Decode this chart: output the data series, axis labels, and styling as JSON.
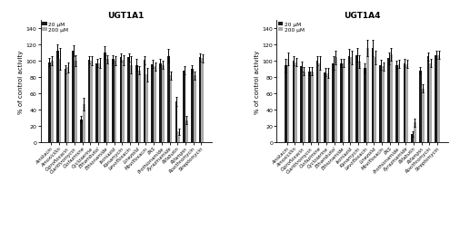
{
  "title1": "UGT1A1",
  "title2": "UGT1A4",
  "ylabel": "% of control activity",
  "legend_labels": [
    "20 μM",
    "200 μM"
  ],
  "categories": [
    "Amikacin",
    "Amoxicillin",
    "Ciprofloxacin",
    "Clarithromycin",
    "Clofazimine",
    "Cycloserine",
    "Ethambutol",
    "Ethionamide",
    "Isoniazid",
    "Kanamycin",
    "Levofloxacin",
    "Linezolid",
    "Moxifloxacin",
    "PAS",
    "Prothionamide",
    "Pyrazinamide",
    "Rifabutin",
    "Rifampin",
    "Roxithromycin",
    "Streptomycin"
  ],
  "ugt1a1_20": [
    98,
    112,
    90,
    112,
    28,
    101,
    97,
    110,
    102,
    104,
    104,
    95,
    101,
    96,
    97,
    106,
    50,
    88,
    90,
    104
  ],
  "ugt1a1_200": [
    100,
    102,
    92,
    100,
    47,
    100,
    97,
    102,
    100,
    101,
    95,
    88,
    83,
    93,
    95,
    82,
    13,
    27,
    82,
    103
  ],
  "ugt1a1_20_err": [
    5,
    8,
    5,
    7,
    4,
    4,
    5,
    8,
    5,
    5,
    5,
    7,
    5,
    5,
    5,
    8,
    6,
    5,
    5,
    5
  ],
  "ugt1a1_200_err": [
    6,
    13,
    6,
    7,
    8,
    5,
    6,
    5,
    5,
    6,
    10,
    5,
    8,
    5,
    5,
    5,
    4,
    5,
    5,
    5
  ],
  "ugt1a4_20": [
    94,
    100,
    93,
    87,
    100,
    86,
    97,
    97,
    106,
    107,
    91,
    115,
    95,
    103,
    95,
    97,
    10,
    88,
    105,
    107
  ],
  "ugt1a4_200": [
    102,
    98,
    87,
    87,
    97,
    85,
    104,
    97,
    104,
    99,
    115,
    104,
    93,
    108,
    96,
    96,
    24,
    66,
    97,
    107
  ],
  "ugt1a4_20_err": [
    8,
    5,
    6,
    5,
    5,
    5,
    8,
    5,
    8,
    8,
    6,
    10,
    6,
    7,
    5,
    5,
    3,
    4,
    5,
    5
  ],
  "ugt1a4_200_err": [
    8,
    5,
    5,
    5,
    8,
    6,
    8,
    5,
    8,
    8,
    10,
    8,
    5,
    8,
    5,
    5,
    5,
    5,
    5,
    5
  ],
  "bar_color_20": "#1a1a1a",
  "bar_color_200": "#aaaaaa",
  "ylim": [
    0,
    150
  ],
  "yticks": [
    0,
    20,
    40,
    60,
    80,
    100,
    120,
    140
  ]
}
